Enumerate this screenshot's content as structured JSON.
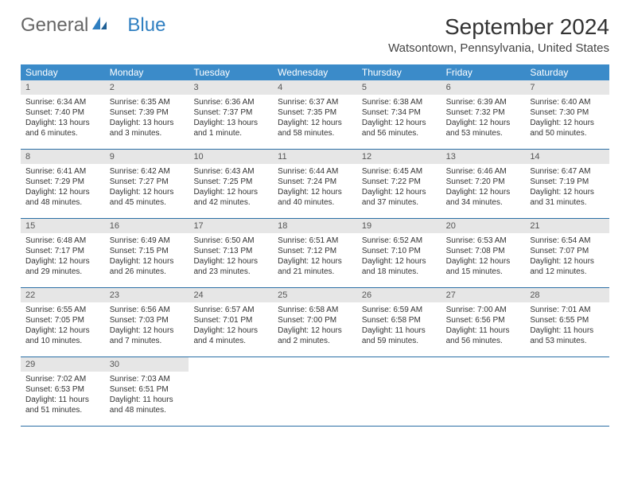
{
  "logo": {
    "general": "General",
    "blue": "Blue"
  },
  "title": "September 2024",
  "location": "Watsontown, Pennsylvania, United States",
  "colors": {
    "header_bg": "#3b8bc9",
    "daynum_bg": "#e6e6e6",
    "week_border": "#2b6fa5",
    "logo_blue": "#2f7fc1"
  },
  "day_names": [
    "Sunday",
    "Monday",
    "Tuesday",
    "Wednesday",
    "Thursday",
    "Friday",
    "Saturday"
  ],
  "weeks": [
    [
      {
        "n": "1",
        "sr": "Sunrise: 6:34 AM",
        "ss": "Sunset: 7:40 PM",
        "dl": "Daylight: 13 hours and 6 minutes."
      },
      {
        "n": "2",
        "sr": "Sunrise: 6:35 AM",
        "ss": "Sunset: 7:39 PM",
        "dl": "Daylight: 13 hours and 3 minutes."
      },
      {
        "n": "3",
        "sr": "Sunrise: 6:36 AM",
        "ss": "Sunset: 7:37 PM",
        "dl": "Daylight: 13 hours and 1 minute."
      },
      {
        "n": "4",
        "sr": "Sunrise: 6:37 AM",
        "ss": "Sunset: 7:35 PM",
        "dl": "Daylight: 12 hours and 58 minutes."
      },
      {
        "n": "5",
        "sr": "Sunrise: 6:38 AM",
        "ss": "Sunset: 7:34 PM",
        "dl": "Daylight: 12 hours and 56 minutes."
      },
      {
        "n": "6",
        "sr": "Sunrise: 6:39 AM",
        "ss": "Sunset: 7:32 PM",
        "dl": "Daylight: 12 hours and 53 minutes."
      },
      {
        "n": "7",
        "sr": "Sunrise: 6:40 AM",
        "ss": "Sunset: 7:30 PM",
        "dl": "Daylight: 12 hours and 50 minutes."
      }
    ],
    [
      {
        "n": "8",
        "sr": "Sunrise: 6:41 AM",
        "ss": "Sunset: 7:29 PM",
        "dl": "Daylight: 12 hours and 48 minutes."
      },
      {
        "n": "9",
        "sr": "Sunrise: 6:42 AM",
        "ss": "Sunset: 7:27 PM",
        "dl": "Daylight: 12 hours and 45 minutes."
      },
      {
        "n": "10",
        "sr": "Sunrise: 6:43 AM",
        "ss": "Sunset: 7:25 PM",
        "dl": "Daylight: 12 hours and 42 minutes."
      },
      {
        "n": "11",
        "sr": "Sunrise: 6:44 AM",
        "ss": "Sunset: 7:24 PM",
        "dl": "Daylight: 12 hours and 40 minutes."
      },
      {
        "n": "12",
        "sr": "Sunrise: 6:45 AM",
        "ss": "Sunset: 7:22 PM",
        "dl": "Daylight: 12 hours and 37 minutes."
      },
      {
        "n": "13",
        "sr": "Sunrise: 6:46 AM",
        "ss": "Sunset: 7:20 PM",
        "dl": "Daylight: 12 hours and 34 minutes."
      },
      {
        "n": "14",
        "sr": "Sunrise: 6:47 AM",
        "ss": "Sunset: 7:19 PM",
        "dl": "Daylight: 12 hours and 31 minutes."
      }
    ],
    [
      {
        "n": "15",
        "sr": "Sunrise: 6:48 AM",
        "ss": "Sunset: 7:17 PM",
        "dl": "Daylight: 12 hours and 29 minutes."
      },
      {
        "n": "16",
        "sr": "Sunrise: 6:49 AM",
        "ss": "Sunset: 7:15 PM",
        "dl": "Daylight: 12 hours and 26 minutes."
      },
      {
        "n": "17",
        "sr": "Sunrise: 6:50 AM",
        "ss": "Sunset: 7:13 PM",
        "dl": "Daylight: 12 hours and 23 minutes."
      },
      {
        "n": "18",
        "sr": "Sunrise: 6:51 AM",
        "ss": "Sunset: 7:12 PM",
        "dl": "Daylight: 12 hours and 21 minutes."
      },
      {
        "n": "19",
        "sr": "Sunrise: 6:52 AM",
        "ss": "Sunset: 7:10 PM",
        "dl": "Daylight: 12 hours and 18 minutes."
      },
      {
        "n": "20",
        "sr": "Sunrise: 6:53 AM",
        "ss": "Sunset: 7:08 PM",
        "dl": "Daylight: 12 hours and 15 minutes."
      },
      {
        "n": "21",
        "sr": "Sunrise: 6:54 AM",
        "ss": "Sunset: 7:07 PM",
        "dl": "Daylight: 12 hours and 12 minutes."
      }
    ],
    [
      {
        "n": "22",
        "sr": "Sunrise: 6:55 AM",
        "ss": "Sunset: 7:05 PM",
        "dl": "Daylight: 12 hours and 10 minutes."
      },
      {
        "n": "23",
        "sr": "Sunrise: 6:56 AM",
        "ss": "Sunset: 7:03 PM",
        "dl": "Daylight: 12 hours and 7 minutes."
      },
      {
        "n": "24",
        "sr": "Sunrise: 6:57 AM",
        "ss": "Sunset: 7:01 PM",
        "dl": "Daylight: 12 hours and 4 minutes."
      },
      {
        "n": "25",
        "sr": "Sunrise: 6:58 AM",
        "ss": "Sunset: 7:00 PM",
        "dl": "Daylight: 12 hours and 2 minutes."
      },
      {
        "n": "26",
        "sr": "Sunrise: 6:59 AM",
        "ss": "Sunset: 6:58 PM",
        "dl": "Daylight: 11 hours and 59 minutes."
      },
      {
        "n": "27",
        "sr": "Sunrise: 7:00 AM",
        "ss": "Sunset: 6:56 PM",
        "dl": "Daylight: 11 hours and 56 minutes."
      },
      {
        "n": "28",
        "sr": "Sunrise: 7:01 AM",
        "ss": "Sunset: 6:55 PM",
        "dl": "Daylight: 11 hours and 53 minutes."
      }
    ],
    [
      {
        "n": "29",
        "sr": "Sunrise: 7:02 AM",
        "ss": "Sunset: 6:53 PM",
        "dl": "Daylight: 11 hours and 51 minutes."
      },
      {
        "n": "30",
        "sr": "Sunrise: 7:03 AM",
        "ss": "Sunset: 6:51 PM",
        "dl": "Daylight: 11 hours and 48 minutes."
      },
      {
        "empty": true
      },
      {
        "empty": true
      },
      {
        "empty": true
      },
      {
        "empty": true
      },
      {
        "empty": true
      }
    ]
  ]
}
